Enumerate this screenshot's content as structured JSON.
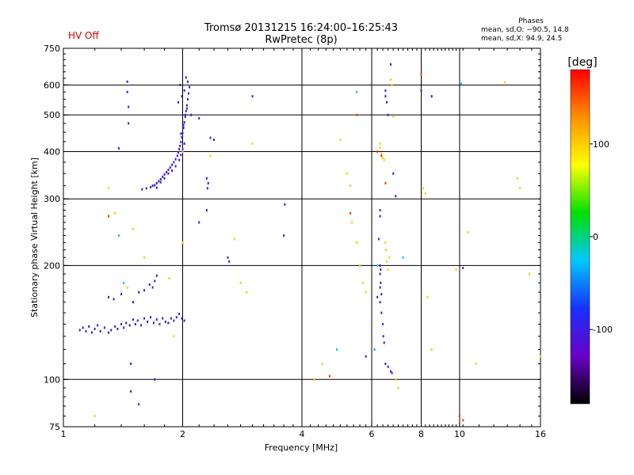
{
  "header": {
    "title_line1": "Tromsø 20131215 16:24:00–16:25:43",
    "title_line2": "RwPretec (8p)",
    "status": "HV Off",
    "status_color": "#e00000",
    "phase_title": "Phases",
    "phase_o": "mean, sd,O: −90.5, 14.8",
    "phase_x": "mean, sd,X:  94.9, 24.5"
  },
  "chart_data": {
    "type": "scatter",
    "xlabel": "Frequency [MHz]",
    "ylabel": "Stationary phase Virtual Height [km]",
    "x_scale": "log",
    "y_scale": "log",
    "xlim": [
      1,
      16
    ],
    "ylim": [
      75,
      750
    ],
    "x_ticks": [
      1,
      2,
      4,
      6,
      8,
      10,
      16
    ],
    "y_ticks": [
      75,
      100,
      200,
      300,
      400,
      500,
      600,
      750
    ],
    "x_gridlines": [
      2,
      4,
      6,
      8,
      10
    ],
    "y_gridlines": [
      100,
      200,
      300,
      400,
      500,
      600
    ],
    "grid": true,
    "colorbar": {
      "label": "[deg]",
      "range": [
        -180,
        180
      ],
      "ticks": [
        100,
        0,
        -100
      ],
      "colors": [
        "#000000",
        "#6a00c8",
        "#1830ff",
        "#00c8ff",
        "#00e000",
        "#ffff00",
        "#ff9000",
        "#ff0000"
      ]
    },
    "series": [
      {
        "phase_deg": -100,
        "points": [
          [
            1.1,
            135
          ],
          [
            1.12,
            137
          ],
          [
            1.14,
            134
          ],
          [
            1.16,
            138
          ],
          [
            1.18,
            133
          ],
          [
            1.2,
            136
          ],
          [
            1.22,
            139
          ],
          [
            1.24,
            134
          ],
          [
            1.27,
            137
          ],
          [
            1.3,
            133
          ],
          [
            1.32,
            135
          ],
          [
            1.35,
            138
          ],
          [
            1.37,
            136
          ],
          [
            1.4,
            140
          ],
          [
            1.42,
            137
          ],
          [
            1.44,
            141
          ],
          [
            1.47,
            139
          ],
          [
            1.5,
            144
          ],
          [
            1.52,
            140
          ],
          [
            1.54,
            143
          ],
          [
            1.57,
            139
          ],
          [
            1.6,
            145
          ],
          [
            1.63,
            142
          ],
          [
            1.66,
            146
          ],
          [
            1.69,
            141
          ],
          [
            1.72,
            144
          ],
          [
            1.75,
            140
          ],
          [
            1.78,
            145
          ],
          [
            1.81,
            142
          ],
          [
            1.84,
            141
          ],
          [
            1.87,
            145
          ],
          [
            1.9,
            143
          ],
          [
            1.93,
            146
          ],
          [
            1.96,
            149
          ],
          [
            1.99,
            145
          ],
          [
            2.02,
            143
          ],
          [
            1.3,
            165
          ],
          [
            1.34,
            163
          ],
          [
            1.4,
            168
          ],
          [
            1.5,
            160
          ],
          [
            1.55,
            170
          ],
          [
            1.6,
            172
          ],
          [
            1.65,
            178
          ],
          [
            1.7,
            182
          ],
          [
            1.72,
            188
          ],
          [
            1.68,
            175
          ],
          [
            1.58,
            318
          ],
          [
            1.62,
            320
          ],
          [
            1.66,
            322
          ],
          [
            1.7,
            326
          ],
          [
            1.72,
            330
          ],
          [
            1.74,
            334
          ],
          [
            1.76,
            338
          ],
          [
            1.78,
            343
          ],
          [
            1.8,
            348
          ],
          [
            1.82,
            353
          ],
          [
            1.84,
            358
          ],
          [
            1.86,
            363
          ],
          [
            1.88,
            369
          ],
          [
            1.9,
            375
          ],
          [
            1.92,
            382
          ],
          [
            1.94,
            390
          ],
          [
            1.95,
            398
          ],
          [
            1.96,
            406
          ],
          [
            1.97,
            414
          ],
          [
            1.98,
            424
          ],
          [
            1.99,
            436
          ],
          [
            2.0,
            448
          ],
          [
            2.01,
            462
          ],
          [
            2.02,
            478
          ],
          [
            2.03,
            494
          ],
          [
            2.04,
            512
          ],
          [
            2.05,
            530
          ],
          [
            2.06,
            550
          ],
          [
            2.07,
            570
          ],
          [
            2.08,
            592
          ],
          [
            2.06,
            612
          ],
          [
            2.04,
            628
          ],
          [
            1.68,
            325
          ],
          [
            1.72,
            321
          ],
          [
            1.76,
            332
          ],
          [
            1.8,
            340
          ],
          [
            1.84,
            350
          ],
          [
            1.88,
            356
          ],
          [
            1.92,
            366
          ],
          [
            1.96,
            380
          ],
          [
            1.98,
            392
          ],
          [
            2.0,
            405
          ],
          [
            2.02,
            420
          ],
          [
            1.98,
            446
          ],
          [
            2.01,
            470
          ],
          [
            2.03,
            500
          ],
          [
            2.05,
            520
          ],
          [
            1.95,
            540
          ],
          [
            1.99,
            560
          ],
          [
            2.02,
            580
          ],
          [
            1.97,
            600
          ],
          [
            1.45,
            612
          ],
          [
            1.45,
            575
          ],
          [
            1.46,
            525
          ],
          [
            1.46,
            475
          ],
          [
            1.38,
            408
          ],
          [
            2.1,
            500
          ],
          [
            2.2,
            490
          ],
          [
            2.35,
            435
          ],
          [
            2.4,
            430
          ],
          [
            2.3,
            340
          ],
          [
            2.32,
            330
          ],
          [
            2.31,
            320
          ],
          [
            2.3,
            280
          ],
          [
            2.2,
            260
          ],
          [
            2.6,
            210
          ],
          [
            2.62,
            205
          ],
          [
            3.0,
            560
          ],
          [
            3.6,
            240
          ],
          [
            3.62,
            290
          ],
          [
            6.3,
            280
          ],
          [
            6.3,
            270
          ],
          [
            6.25,
            235
          ],
          [
            6.3,
            200
          ],
          [
            6.32,
            195
          ],
          [
            6.3,
            190
          ],
          [
            6.32,
            180
          ],
          [
            6.3,
            175
          ],
          [
            6.35,
            168
          ],
          [
            6.3,
            160
          ],
          [
            6.35,
            150
          ],
          [
            6.4,
            140
          ],
          [
            6.42,
            130
          ],
          [
            6.45,
            125
          ],
          [
            6.5,
            110
          ],
          [
            6.6,
            108
          ],
          [
            6.7,
            105
          ],
          [
            6.75,
            104
          ],
          [
            6.5,
            580
          ],
          [
            6.5,
            560
          ],
          [
            6.55,
            540
          ],
          [
            6.6,
            500
          ],
          [
            6.7,
            680
          ],
          [
            6.8,
            350
          ],
          [
            6.9,
            305
          ],
          [
            6.1,
            120
          ],
          [
            5.8,
            115
          ],
          [
            6.2,
            165
          ],
          [
            8.0,
            580
          ],
          [
            8.5,
            560
          ],
          [
            10.2,
            197
          ],
          [
            1.7,
            100
          ],
          [
            1.48,
            93
          ],
          [
            1.55,
            86
          ],
          [
            1.48,
            110
          ]
        ]
      },
      {
        "phase_deg": 100,
        "points": [
          [
            1.3,
            320
          ],
          [
            1.35,
            275
          ],
          [
            1.6,
            210
          ],
          [
            1.85,
            185
          ],
          [
            1.9,
            130
          ],
          [
            2.0,
            230
          ],
          [
            2.35,
            390
          ],
          [
            2.7,
            235
          ],
          [
            2.8,
            180
          ],
          [
            2.9,
            170
          ],
          [
            3.0,
            420
          ],
          [
            4.3,
            100
          ],
          [
            4.5,
            110
          ],
          [
            5.0,
            430
          ],
          [
            5.2,
            350
          ],
          [
            5.3,
            325
          ],
          [
            5.35,
            260
          ],
          [
            5.5,
            230
          ],
          [
            5.6,
            200
          ],
          [
            5.7,
            180
          ],
          [
            5.8,
            170
          ],
          [
            6.3,
            420
          ],
          [
            6.3,
            410
          ],
          [
            6.35,
            395
          ],
          [
            6.4,
            385
          ],
          [
            6.45,
            380
          ],
          [
            6.5,
            230
          ],
          [
            6.52,
            220
          ],
          [
            6.55,
            205
          ],
          [
            6.6,
            195
          ],
          [
            6.65,
            210
          ],
          [
            6.7,
            620
          ],
          [
            6.75,
            600
          ],
          [
            6.8,
            495
          ],
          [
            6.9,
            100
          ],
          [
            7.0,
            95
          ],
          [
            8.1,
            320
          ],
          [
            8.2,
            310
          ],
          [
            8.3,
            165
          ],
          [
            8.5,
            120
          ],
          [
            9.8,
            195
          ],
          [
            10.5,
            245
          ],
          [
            11,
            110
          ],
          [
            13.0,
            610
          ],
          [
            14.0,
            340
          ],
          [
            14.2,
            320
          ],
          [
            15,
            190
          ],
          [
            16,
            115
          ],
          [
            1.2,
            80
          ],
          [
            2.0,
            400
          ],
          [
            1.45,
            175
          ],
          [
            1.5,
            250
          ]
        ]
      },
      {
        "phase_deg": 160,
        "points": [
          [
            1.3,
            270
          ],
          [
            4.7,
            102
          ],
          [
            5.3,
            275
          ],
          [
            5.5,
            500
          ],
          [
            6.5,
            330
          ],
          [
            10.0,
            80
          ],
          [
            10.2,
            78
          ],
          [
            6.2,
            400
          ],
          [
            6.35,
            390
          ],
          [
            8.0,
            640
          ]
        ]
      },
      {
        "phase_deg": -20,
        "points": [
          [
            5.5,
            575
          ],
          [
            6.2,
            200
          ],
          [
            6.1,
            120
          ],
          [
            7.2,
            210
          ],
          [
            4.9,
            120
          ],
          [
            1.38,
            240
          ],
          [
            1.42,
            180
          ],
          [
            10.1,
            605
          ]
        ]
      }
    ]
  }
}
